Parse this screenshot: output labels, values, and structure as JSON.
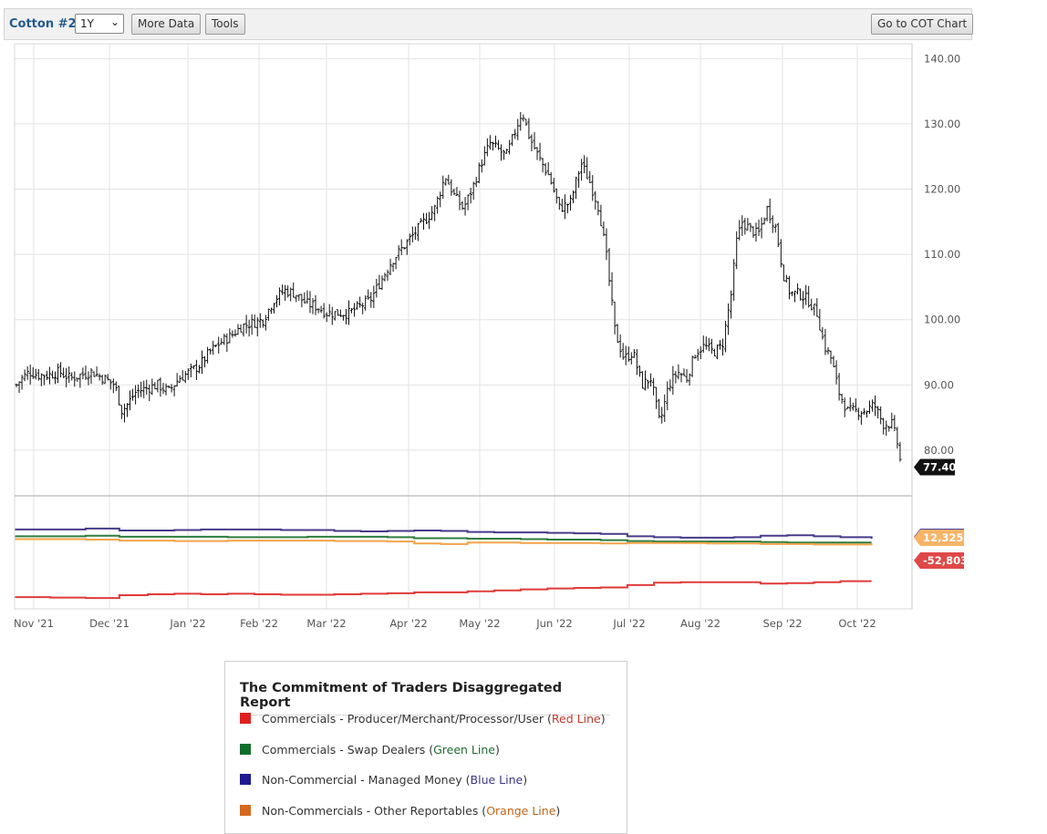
{
  "toolbar": {
    "symbol": "Cotton #2",
    "period": "1Y",
    "more_data": "More Data",
    "tools": "Tools",
    "cot_chart": "Go to COT Chart"
  },
  "chart_data": [
    {
      "type": "ohlc",
      "x_labels": [
        "Nov '21",
        "Dec '21",
        "Jan '22",
        "Feb '22",
        "Mar '22",
        "Apr '22",
        "May '22",
        "Jun '22",
        "Jul '22",
        "Aug '22",
        "Sep '22",
        "Oct '22"
      ],
      "yticks": [
        "140.00",
        "130.00",
        "120.00",
        "110.00",
        "100.00",
        "90.00",
        "80.00"
      ],
      "ylim": [
        73,
        142
      ],
      "last_price": "77.40",
      "price_path": [
        [
          0,
          90
        ],
        [
          6,
          91
        ],
        [
          14,
          92
        ],
        [
          25,
          91.5
        ],
        [
          36,
          91.5
        ],
        [
          48,
          92
        ],
        [
          60,
          91
        ],
        [
          72,
          91.5
        ],
        [
          84,
          92
        ],
        [
          98,
          91
        ],
        [
          110,
          90
        ],
        [
          118,
          86
        ],
        [
          124,
          87
        ],
        [
          134,
          89
        ],
        [
          146,
          89.5
        ],
        [
          158,
          90
        ],
        [
          170,
          89
        ],
        [
          182,
          91
        ],
        [
          194,
          92
        ],
        [
          205,
          93
        ],
        [
          216,
          95
        ],
        [
          228,
          96.5
        ],
        [
          240,
          97.5
        ],
        [
          252,
          99
        ],
        [
          264,
          99.5
        ],
        [
          276,
          100
        ],
        [
          288,
          103
        ],
        [
          300,
          104.5
        ],
        [
          312,
          104
        ],
        [
          324,
          102.5
        ],
        [
          336,
          102
        ],
        [
          348,
          101
        ],
        [
          360,
          101
        ],
        [
          372,
          101
        ],
        [
          384,
          102
        ],
        [
          396,
          103
        ],
        [
          408,
          106
        ],
        [
          420,
          109
        ],
        [
          432,
          111
        ],
        [
          444,
          113
        ],
        [
          456,
          115
        ],
        [
          468,
          117
        ],
        [
          480,
          122
        ],
        [
          490,
          119
        ],
        [
          500,
          117
        ],
        [
          510,
          120
        ],
        [
          520,
          124
        ],
        [
          530,
          127
        ],
        [
          540,
          126
        ],
        [
          548,
          125
        ],
        [
          556,
          128
        ],
        [
          566,
          132
        ],
        [
          574,
          128
        ],
        [
          584,
          125
        ],
        [
          596,
          122
        ],
        [
          608,
          117
        ],
        [
          620,
          118
        ],
        [
          632,
          124
        ],
        [
          642,
          121
        ],
        [
          652,
          117
        ],
        [
          660,
          110
        ],
        [
          670,
          98
        ],
        [
          680,
          94
        ],
        [
          690,
          95
        ],
        [
          700,
          90
        ],
        [
          710,
          91
        ],
        [
          720,
          84
        ],
        [
          730,
          90
        ],
        [
          740,
          92
        ],
        [
          750,
          91
        ],
        [
          760,
          95
        ],
        [
          770,
          96
        ],
        [
          780,
          95
        ],
        [
          790,
          96
        ],
        [
          800,
          104
        ],
        [
          806,
          112
        ],
        [
          812,
          115
        ],
        [
          820,
          114
        ],
        [
          830,
          113
        ],
        [
          840,
          117
        ],
        [
          850,
          114
        ],
        [
          858,
          107
        ],
        [
          866,
          104
        ],
        [
          876,
          104
        ],
        [
          886,
          103
        ],
        [
          896,
          101
        ],
        [
          904,
          96
        ],
        [
          912,
          94
        ],
        [
          920,
          89
        ],
        [
          930,
          86
        ],
        [
          940,
          86
        ],
        [
          950,
          86
        ],
        [
          960,
          87
        ],
        [
          970,
          84
        ],
        [
          980,
          84
        ],
        [
          986,
          81
        ],
        [
          990,
          77.5
        ]
      ]
    },
    {
      "type": "line",
      "series": [
        {
          "name": "Commercials - Producer/Merchant/Processor/User",
          "color": "#e03a3a",
          "x": [
            0,
            40,
            80,
            118,
            150,
            180,
            210,
            240,
            270,
            300,
            330,
            360,
            390,
            420,
            450,
            480,
            510,
            540,
            570,
            600,
            630,
            660,
            690,
            720,
            750,
            780,
            810,
            840,
            870,
            900,
            930,
            965
          ],
          "y": [
            -104,
            -105,
            -106,
            -100,
            -98,
            -97,
            -98,
            -97,
            -98,
            -99,
            -99,
            -98,
            -97,
            -96,
            -94,
            -94,
            -92,
            -90,
            -88,
            -86,
            -85,
            -84,
            -79,
            -74,
            -73,
            -73,
            -73,
            -76,
            -75,
            -73,
            -71,
            -71
          ]
        },
        {
          "name": "Commercials - Swap Dealers",
          "color": "#2e7d3e",
          "x": [
            0,
            40,
            80,
            118,
            150,
            180,
            210,
            240,
            270,
            300,
            330,
            360,
            390,
            420,
            450,
            480,
            510,
            540,
            570,
            600,
            630,
            660,
            690,
            720,
            750,
            780,
            810,
            840,
            870,
            900,
            930,
            965
          ],
          "y": [
            22,
            22,
            23,
            21,
            21,
            21,
            21,
            20,
            20,
            20,
            21,
            21,
            21,
            20,
            18,
            18,
            17,
            17,
            16,
            15,
            15,
            14,
            12,
            11,
            11,
            11,
            11,
            10,
            9,
            9,
            9,
            9
          ]
        },
        {
          "name": "Non-Commercial - Managed Money",
          "color": "#473a8a",
          "x": [
            0,
            40,
            80,
            118,
            150,
            180,
            210,
            240,
            270,
            300,
            330,
            360,
            390,
            420,
            450,
            480,
            510,
            540,
            570,
            600,
            630,
            660,
            690,
            720,
            750,
            780,
            810,
            840,
            870,
            900,
            930,
            965
          ],
          "y": [
            36,
            36,
            38,
            34,
            34,
            35,
            36,
            36,
            36,
            35,
            35,
            33,
            32,
            33,
            34,
            33,
            31,
            30,
            30,
            29,
            28,
            27,
            22,
            20,
            19,
            19,
            20,
            23,
            24,
            22,
            20,
            17
          ]
        },
        {
          "name": "Non-Commercials - Other Reportables",
          "color": "#f3a449",
          "x": [
            0,
            40,
            80,
            118,
            150,
            180,
            210,
            240,
            270,
            300,
            330,
            360,
            390,
            420,
            450,
            480,
            510,
            540,
            570,
            600,
            630,
            660,
            690,
            720,
            750,
            780,
            810,
            840,
            870,
            900,
            930,
            965
          ],
          "y": [
            16,
            16,
            15,
            13,
            13,
            12,
            12,
            13,
            13,
            13,
            13,
            12,
            12,
            11,
            7,
            6,
            9,
            9,
            8,
            8,
            8,
            7,
            8,
            8,
            8,
            7,
            7,
            6,
            6,
            5,
            5,
            4
          ]
        }
      ],
      "labels": [
        "12,325",
        "-52,803"
      ]
    }
  ],
  "legend": {
    "title": "The Commitment of Traders Disaggregated Report",
    "items": [
      {
        "text": "Commercials - Producer/Merchant/Processor/User (",
        "paren": "Red Line",
        "end": ")",
        "color": "#e02020",
        "text_color": "#c0392b"
      },
      {
        "text": "Commercials - Swap Dealers (",
        "paren": "Green Line",
        "end": ")",
        "color": "#0f6e2a",
        "text_color": "#1f6b33"
      },
      {
        "text": "Non-Commercial - Managed Money (",
        "paren": "Blue Line",
        "end": ")",
        "color": "#1f1a8f",
        "text_color": "#3a3690"
      },
      {
        "text": "Non-Commercials - Other Reportables (",
        "paren": "Orange Line",
        "end": ")",
        "color": "#d2691e",
        "text_color": "#c0641c"
      }
    ]
  }
}
